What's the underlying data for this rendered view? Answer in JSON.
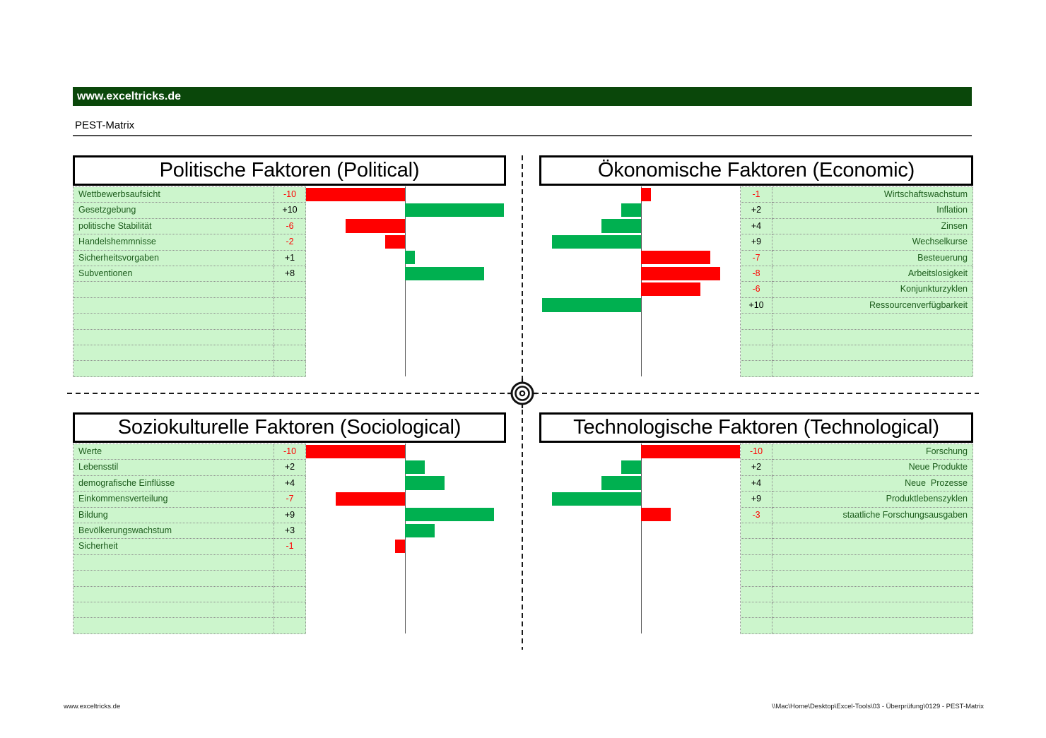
{
  "header": {
    "brand": "www.exceltricks.de",
    "title": "PEST-Matrix"
  },
  "footer": {
    "left": "www.exceltricks.de",
    "right": "\\\\Mac\\Home\\Desktop\\Excel-Tools\\03 - Überprüfung\\0129 - PEST-Matrix"
  },
  "colors": {
    "brand_bar_bg": "#0a470a",
    "positive_bar": "#00b050",
    "negative_bar": "#ff0000",
    "cell_bg": "#ccf5cc",
    "label_text": "#1c5c1c",
    "negative_value_text": "#ff0000",
    "positive_value_text": "#000000"
  },
  "chart_data": [
    {
      "type": "bar",
      "title": "Politische Faktoren (Political)",
      "orientation": "horizontal",
      "side": "left",
      "xlim": [
        -10,
        10
      ],
      "total_rows": 12,
      "grid": false,
      "categories": [
        "Wettbewerbsaufsicht",
        "Gesetzgebung",
        "politische Stabilität",
        "Handelshemmnisse",
        "Sicherheitsvorgaben",
        "Subventionen"
      ],
      "values": [
        -10,
        10,
        -6,
        -2,
        1,
        8
      ],
      "value_labels": [
        "-10",
        "+10",
        "-6",
        "-2",
        "+1",
        "+8"
      ],
      "positive_color": "#00b050",
      "negative_color": "#ff0000"
    },
    {
      "type": "bar",
      "title": "Ökonomische Faktoren (Economic)",
      "orientation": "horizontal",
      "side": "right",
      "xlim": [
        -10,
        10
      ],
      "total_rows": 12,
      "grid": false,
      "categories": [
        "Wirtschaftswachstum",
        "Inflation",
        "Zinsen",
        "Wechselkurse",
        "Besteuerung",
        "Arbeitslosigkeit",
        "Konjunkturzyklen",
        "Ressourcenverfügbarkeit"
      ],
      "values": [
        -1,
        2,
        4,
        9,
        -7,
        -8,
        -6,
        10
      ],
      "value_labels": [
        "-1",
        "+2",
        "+4",
        "+9",
        "-7",
        "-8",
        "-6",
        "+10"
      ],
      "positive_color": "#00b050",
      "negative_color": "#ff0000"
    },
    {
      "type": "bar",
      "title": "Soziokulturelle Faktoren (Sociological)",
      "orientation": "horizontal",
      "side": "left",
      "xlim": [
        -10,
        10
      ],
      "total_rows": 12,
      "grid": false,
      "categories": [
        "Werte",
        "Lebensstil",
        "demografische Einflüsse",
        "Einkommensverteilung",
        "Bildung",
        "Bevölkerungswachstum",
        "Sicherheit"
      ],
      "values": [
        -10,
        2,
        4,
        -7,
        9,
        3,
        -1
      ],
      "value_labels": [
        "-10",
        "+2",
        "+4",
        "-7",
        "+9",
        "+3",
        "-1"
      ],
      "positive_color": "#00b050",
      "negative_color": "#ff0000"
    },
    {
      "type": "bar",
      "title": "Technologische Faktoren (Technological)",
      "orientation": "horizontal",
      "side": "right",
      "xlim": [
        -10,
        10
      ],
      "total_rows": 12,
      "grid": false,
      "categories": [
        "Forschung",
        "Neue Produkte",
        "Neue  Prozesse",
        "Produktlebenszyklen",
        "staatliche Forschungsausgaben"
      ],
      "values": [
        -10,
        2,
        4,
        9,
        -3
      ],
      "value_labels": [
        "-10",
        "+2",
        "+4",
        "+9",
        "-3"
      ],
      "positive_color": "#00b050",
      "negative_color": "#ff0000"
    }
  ]
}
